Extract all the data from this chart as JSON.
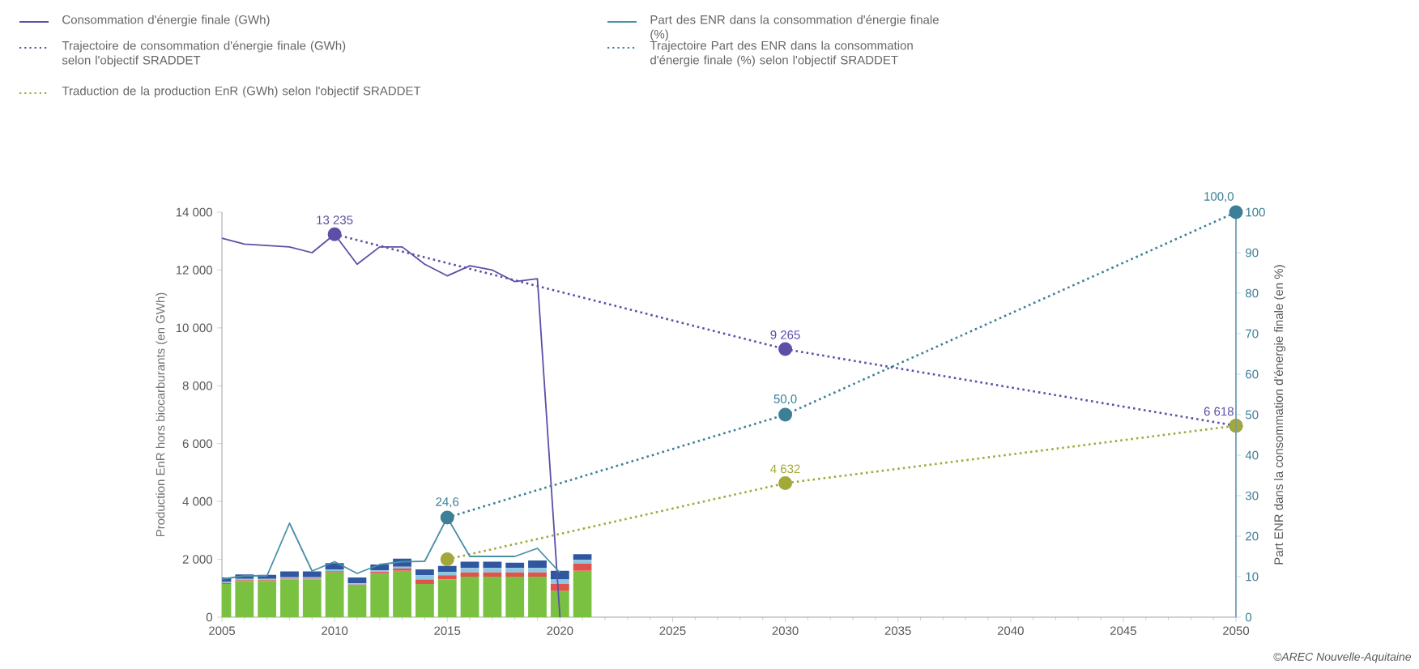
{
  "chart_data": {
    "type": "line",
    "ylabel": "Production EnR hors biocarburants (en GWh)",
    "y2label": "Part ENR dans la consommation d'énergie finale (en %)",
    "xlim": [
      2005,
      2050
    ],
    "xticks": [
      2005,
      2010,
      2015,
      2020,
      2025,
      2030,
      2035,
      2040,
      2045,
      2050
    ],
    "ylim": [
      0,
      14000
    ],
    "yticks": [
      0,
      {
        "value": 2000,
        "label": "2 000"
      },
      {
        "value": 4000,
        "label": "4 000"
      },
      {
        "value": 6000,
        "label": "6 000"
      },
      {
        "value": 8000,
        "label": "8 000"
      },
      {
        "value": 10000,
        "label": "10 000"
      },
      {
        "value": 12000,
        "label": "12 000"
      },
      {
        "value": 14000,
        "label": "14 000"
      }
    ],
    "y2lim": [
      0,
      100
    ],
    "y2ticks": [
      0,
      10,
      20,
      30,
      40,
      50,
      60,
      70,
      80,
      90,
      100
    ],
    "grid": false,
    "legend": "top",
    "stacked": true,
    "annotations": [
      "©AREC Nouvelle-Aquitaine"
    ],
    "series": [
      {
        "name": "Consommation d'énergie finale (GWh)",
        "color": "#5b4fa8",
        "line_style": "solid",
        "marker": "none",
        "x": [
          2005,
          2006,
          2007,
          2008,
          2009,
          2010,
          2011,
          2012,
          2013,
          2014,
          2015,
          2016,
          2017,
          2018,
          2019,
          2020
        ],
        "values": [
          13100,
          12900,
          12850,
          12800,
          12600,
          13235,
          12200,
          12800,
          12800,
          12200,
          11800,
          12150,
          12000,
          11600,
          11700,
          0
        ]
      },
      {
        "name": "Part des ENR dans la consommation d'énergie finale (%)",
        "axis": "y2",
        "color": "#4a8fa8",
        "line_style": "solid",
        "marker": "none",
        "x": [
          2005,
          2006,
          2007,
          2008,
          2009,
          2010,
          2011,
          2012,
          2013,
          2014,
          2015,
          2016,
          2017,
          2018,
          2019,
          2020
        ],
        "values": [
          9.4,
          10.2,
          10.2,
          23.2,
          11.4,
          13.7,
          10.8,
          13,
          13.7,
          13.8,
          24.6,
          15,
          15,
          15,
          17,
          11
        ]
      },
      {
        "name": "Trajectoire de consommation d'énergie finale (GWh) selon l'objectif SRADDET",
        "color": "#5b4fa8",
        "line_style": "dotted",
        "marker": "circle",
        "x": [
          2010,
          2030,
          2050
        ],
        "values": [
          13235,
          9265,
          6618
        ],
        "value_labels": [
          "13 235",
          "9 265",
          "6 618"
        ]
      },
      {
        "name": "Trajectoire Part des ENR dans la consommation d'énergie finale (%) selon l'objectif SRADDET",
        "axis": "y2",
        "color": "#3d7f96",
        "line_style": "dotted",
        "marker": "circle",
        "x": [
          2015,
          2030,
          2050
        ],
        "values": [
          24.6,
          50,
          100
        ],
        "value_labels": [
          "24,6",
          "50,0",
          "100,0"
        ]
      },
      {
        "name": "Traduction de la production EnR (GWh) selon l'objectif SRADDET",
        "color": "#a3a83a",
        "line_style": "dotted",
        "marker": "circle",
        "x": [
          2015,
          2030,
          2050
        ],
        "values": [
          2000,
          4632,
          6618
        ],
        "value_labels": [
          null,
          "4 632",
          null
        ]
      },
      {
        "type": "bar",
        "color": "#7ac142",
        "x": [
          2005,
          2006,
          2007,
          2008,
          2009,
          2010,
          2011,
          2012,
          2013,
          2014,
          2015,
          2016,
          2017,
          2018,
          2019,
          2020,
          2021
        ],
        "values": [
          1150,
          1250,
          1250,
          1300,
          1300,
          1550,
          1100,
          1500,
          1600,
          1150,
          1300,
          1400,
          1400,
          1400,
          1400,
          900,
          1600
        ]
      },
      {
        "type": "bar",
        "color": "#e0524b",
        "x": [
          2005,
          2006,
          2007,
          2008,
          2009,
          2010,
          2011,
          2012,
          2013,
          2014,
          2015,
          2016,
          2017,
          2018,
          2019,
          2020,
          2021
        ],
        "values": [
          30,
          30,
          30,
          30,
          30,
          40,
          30,
          60,
          80,
          150,
          150,
          150,
          150,
          150,
          150,
          250,
          250
        ]
      },
      {
        "type": "bar",
        "color": "#8fc6e0",
        "x": [
          2005,
          2006,
          2007,
          2008,
          2009,
          2010,
          2011,
          2012,
          2013,
          2014,
          2015,
          2016,
          2017,
          2018,
          2019,
          2020,
          2021
        ],
        "values": [
          40,
          40,
          40,
          50,
          50,
          60,
          40,
          60,
          60,
          150,
          120,
          150,
          150,
          150,
          150,
          150,
          130
        ]
      },
      {
        "type": "bar",
        "color": "#2f57a0",
        "x": [
          2005,
          2006,
          2007,
          2008,
          2009,
          2010,
          2011,
          2012,
          2013,
          2014,
          2015,
          2016,
          2017,
          2018,
          2019,
          2020,
          2021
        ],
        "values": [
          150,
          160,
          140,
          200,
          200,
          220,
          200,
          200,
          280,
          200,
          200,
          220,
          220,
          180,
          260,
          300,
          200
        ]
      }
    ]
  }
}
